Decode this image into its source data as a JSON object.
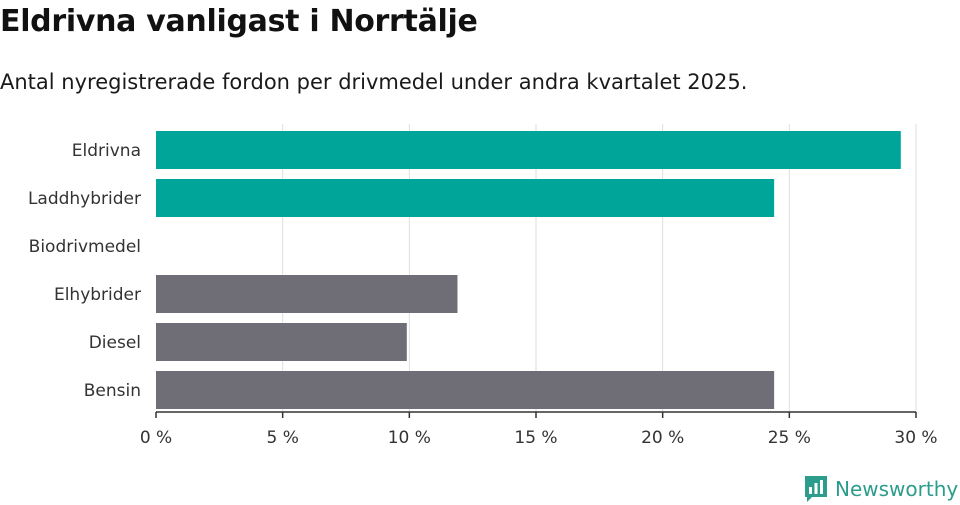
{
  "header": {
    "title": "Eldrivna vanligast i Norrtälje",
    "subtitle": "Antal nyregistrerade fordon per drivmedel under andra kvartalet 2025."
  },
  "brand": {
    "name": "Newsworthy",
    "icon": "newsworthy-logo-icon",
    "color": "#2c9c8c"
  },
  "chart_data": {
    "type": "bar",
    "orientation": "horizontal",
    "categories": [
      "Eldrivna",
      "Laddhybrider",
      "Biodrivmedel",
      "Elhybrider",
      "Diesel",
      "Bensin"
    ],
    "values": [
      29.4,
      24.4,
      0,
      11.9,
      9.9,
      24.4
    ],
    "colors": [
      "#00a59a",
      "#00a59a",
      "#00a59a",
      "#6f6d75",
      "#6f6d75",
      "#6f6d75"
    ],
    "xlim": [
      0,
      30
    ],
    "xticks": [
      0,
      5,
      10,
      15,
      20,
      25,
      30
    ],
    "tick_labels": [
      "0 %",
      "5 %",
      "10 %",
      "15 %",
      "20 %",
      "25 %",
      "30 %"
    ],
    "xlabel": "",
    "ylabel": "",
    "grid": true,
    "legend": "none"
  }
}
